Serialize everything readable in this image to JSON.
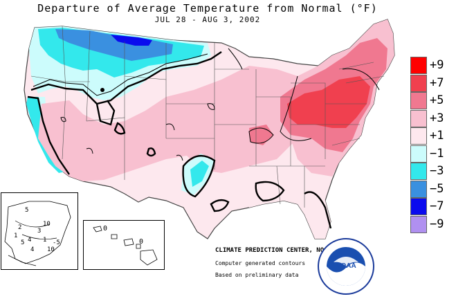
{
  "header": {
    "title": "Departure of Average Temperature from Normal (°F)",
    "subtitle": "JUL 28 - AUG 3, 2002"
  },
  "legend": {
    "items": [
      {
        "label": "+9",
        "color": "#ff0000"
      },
      {
        "label": "+7",
        "color": "#f0404f"
      },
      {
        "label": "+5",
        "color": "#f07890"
      },
      {
        "label": "+3",
        "color": "#f8c0d0"
      },
      {
        "label": "+1",
        "color": "#fde8ee"
      },
      {
        "label": "−1",
        "color": "#ccfcfc"
      },
      {
        "label": "−3",
        "color": "#33e8ec"
      },
      {
        "label": "−5",
        "color": "#3a90e0"
      },
      {
        "label": "−7",
        "color": "#0a0aee"
      },
      {
        "label": "−9",
        "color": "#b090f0"
      }
    ]
  },
  "credits": {
    "main": "CLIMATE PREDICTION CENTER, NOAA",
    "line1": "Computer generated contours",
    "line2": "Based on preliminary data"
  },
  "logo": {
    "text": "NOAA",
    "icon": "noaa-logo"
  },
  "alaska_labels": [
    "5",
    "10",
    "2",
    "3",
    "1",
    "5",
    "4",
    "1",
    "-5",
    "4",
    "10"
  ],
  "hawaii_labels": [
    "0",
    "0"
  ],
  "colors": {
    "land_neutral": "#fde8ee",
    "warm3": "#f8c0d0",
    "warm5": "#f07890",
    "warm7": "#f0404f",
    "cool1": "#ccfcfc",
    "cool3": "#33e8ec",
    "cool5": "#3a90e0",
    "cool7": "#0a0aee"
  }
}
